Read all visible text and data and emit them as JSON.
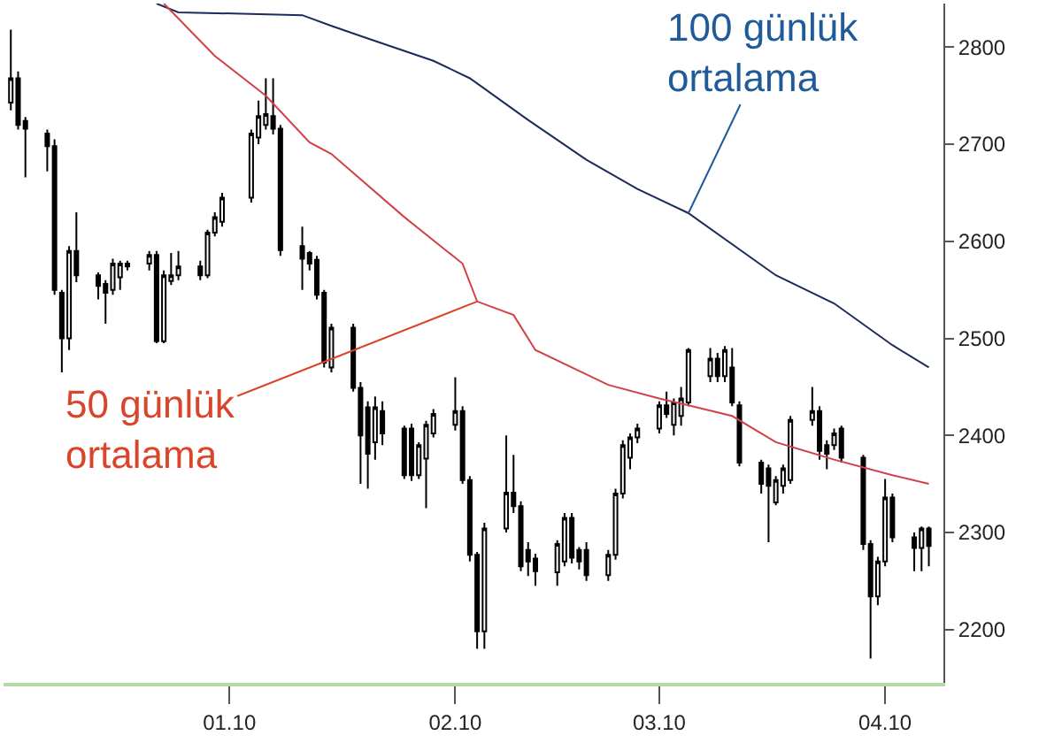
{
  "chart_data": {
    "type": "candlestick",
    "x": [
      "2009-12-02",
      "2009-12-03",
      "2009-12-04",
      "2009-12-07",
      "2009-12-08",
      "2009-12-09",
      "2009-12-10",
      "2009-12-11",
      "2009-12-14",
      "2009-12-15",
      "2009-12-16",
      "2009-12-17",
      "2009-12-18",
      "2009-12-21",
      "2009-12-22",
      "2009-12-23",
      "2009-12-24",
      "2009-12-25",
      "2009-12-28",
      "2009-12-29",
      "2009-12-30",
      "2009-12-31",
      "2010-01-04",
      "2010-01-05",
      "2010-01-06",
      "2010-01-07",
      "2010-01-08",
      "2010-01-11",
      "2010-01-12",
      "2010-01-13",
      "2010-01-14",
      "2010-01-15",
      "2010-01-18",
      "2010-01-19",
      "2010-01-20",
      "2010-01-21",
      "2010-01-22",
      "2010-01-25",
      "2010-01-26",
      "2010-01-27",
      "2010-01-28",
      "2010-01-29",
      "2010-02-01",
      "2010-02-02",
      "2010-02-03",
      "2010-02-04",
      "2010-02-05",
      "2010-02-08",
      "2010-02-09",
      "2010-02-10",
      "2010-02-11",
      "2010-02-12",
      "2010-02-15",
      "2010-02-16",
      "2010-02-17",
      "2010-02-18",
      "2010-02-19",
      "2010-02-22",
      "2010-02-23",
      "2010-02-24",
      "2010-02-25",
      "2010-02-26",
      "2010-03-01",
      "2010-03-02",
      "2010-03-03",
      "2010-03-04",
      "2010-03-05",
      "2010-03-08",
      "2010-03-09",
      "2010-03-10",
      "2010-03-11",
      "2010-03-12",
      "2010-03-15",
      "2010-03-16",
      "2010-03-17",
      "2010-03-18",
      "2010-03-19",
      "2010-03-22",
      "2010-03-23",
      "2010-03-24",
      "2010-03-25",
      "2010-03-26",
      "2010-03-29",
      "2010-03-30",
      "2010-03-31",
      "2010-04-01",
      "2010-04-02",
      "2010-04-05",
      "2010-04-06",
      "2010-04-07"
    ],
    "ohlc": [
      [
        2743,
        2818,
        2735,
        2768
      ],
      [
        2768,
        2775,
        2715,
        2720
      ],
      [
        2724,
        2728,
        2666,
        2716
      ],
      [
        2711,
        2715,
        2672,
        2698
      ],
      [
        2698,
        2705,
        2545,
        2550
      ],
      [
        2547,
        2550,
        2465,
        2500
      ],
      [
        2500,
        2595,
        2488,
        2590
      ],
      [
        2590,
        2630,
        2558,
        2565
      ],
      [
        2565,
        2568,
        2540,
        2554
      ],
      [
        2556,
        2560,
        2515,
        2547
      ],
      [
        2550,
        2582,
        2545,
        2577
      ],
      [
        2563,
        2580,
        2550,
        2577
      ],
      [
        2574,
        2580,
        2570,
        2577
      ],
      [
        2577,
        2590,
        2570,
        2586
      ],
      [
        2586,
        2590,
        2495,
        2497
      ],
      [
        2497,
        2570,
        2495,
        2565
      ],
      [
        2559,
        2588,
        2555,
        2565
      ],
      [
        2565,
        2590,
        2560,
        2574
      ],
      [
        2574,
        2580,
        2560,
        2565
      ],
      [
        2565,
        2612,
        2562,
        2609
      ],
      [
        2609,
        2630,
        2605,
        2625
      ],
      [
        2620,
        2650,
        2615,
        2645
      ],
      [
        2645,
        2715,
        2640,
        2711
      ],
      [
        2707,
        2745,
        2700,
        2729
      ],
      [
        2720,
        2768,
        2715,
        2731
      ],
      [
        2729,
        2768,
        2710,
        2716
      ],
      [
        2716,
        2720,
        2585,
        2591
      ],
      [
        2595,
        2615,
        2550,
        2582
      ],
      [
        2588,
        2590,
        2570,
        2577
      ],
      [
        2581,
        2585,
        2540,
        2545
      ],
      [
        2547,
        2550,
        2470,
        2475
      ],
      [
        2470,
        2515,
        2465,
        2511
      ],
      [
        2511,
        2515,
        2445,
        2449
      ],
      [
        2449,
        2455,
        2350,
        2400
      ],
      [
        2429,
        2435,
        2345,
        2381
      ],
      [
        2393,
        2440,
        2375,
        2429
      ],
      [
        2425,
        2435,
        2390,
        2402
      ],
      [
        2407,
        2410,
        2355,
        2359
      ],
      [
        2407,
        2412,
        2353,
        2359
      ],
      [
        2359,
        2393,
        2355,
        2390
      ],
      [
        2376,
        2415,
        2325,
        2411
      ],
      [
        2402,
        2427,
        2398,
        2422
      ],
      [
        2411,
        2460,
        2405,
        2425
      ],
      [
        2425,
        2430,
        2350,
        2354
      ],
      [
        2354,
        2358,
        2270,
        2277
      ],
      [
        2277,
        2280,
        2180,
        2198
      ],
      [
        2198,
        2310,
        2180,
        2304
      ],
      [
        2304,
        2400,
        2300,
        2341
      ],
      [
        2341,
        2380,
        2320,
        2327
      ],
      [
        2327,
        2332,
        2260,
        2265
      ],
      [
        2282,
        2290,
        2255,
        2270
      ],
      [
        2273,
        2278,
        2245,
        2260
      ],
      [
        2259,
        2292,
        2245,
        2288
      ],
      [
        2270,
        2320,
        2265,
        2315
      ],
      [
        2315,
        2320,
        2268,
        2274
      ],
      [
        2282,
        2285,
        2262,
        2270
      ],
      [
        2282,
        2290,
        2250,
        2256
      ],
      [
        2256,
        2282,
        2250,
        2277
      ],
      [
        2277,
        2345,
        2272,
        2340
      ],
      [
        2340,
        2395,
        2335,
        2390
      ],
      [
        2377,
        2402,
        2365,
        2398
      ],
      [
        2398,
        2412,
        2392,
        2407
      ],
      [
        2407,
        2435,
        2402,
        2431
      ],
      [
        2431,
        2445,
        2418,
        2422
      ],
      [
        2411,
        2438,
        2400,
        2434
      ],
      [
        2420,
        2450,
        2410,
        2438
      ],
      [
        2434,
        2490,
        2430,
        2488
      ],
      [
        2461,
        2490,
        2455,
        2479
      ],
      [
        2479,
        2485,
        2455,
        2461
      ],
      [
        2461,
        2492,
        2455,
        2488
      ],
      [
        2470,
        2490,
        2430,
        2434
      ],
      [
        2431,
        2435,
        2368,
        2372
      ],
      [
        2372,
        2375,
        2340,
        2350
      ],
      [
        2366,
        2370,
        2290,
        2348
      ],
      [
        2331,
        2358,
        2328,
        2354
      ],
      [
        2348,
        2370,
        2340,
        2366
      ],
      [
        2354,
        2420,
        2350,
        2416
      ],
      [
        2416,
        2450,
        2410,
        2425
      ],
      [
        2425,
        2430,
        2375,
        2384
      ],
      [
        2390,
        2395,
        2365,
        2381
      ],
      [
        2390,
        2407,
        2385,
        2402
      ],
      [
        2407,
        2410,
        2372,
        2377
      ],
      [
        2377,
        2380,
        2282,
        2288
      ],
      [
        2288,
        2292,
        2170,
        2234
      ],
      [
        2234,
        2275,
        2225,
        2270
      ],
      [
        2270,
        2355,
        2265,
        2336
      ],
      [
        2336,
        2340,
        2290,
        2295
      ],
      [
        2295,
        2300,
        2260,
        2284
      ],
      [
        2284,
        2306,
        2260,
        2304
      ],
      [
        2304,
        2306,
        2265,
        2286
      ]
    ],
    "series": [
      {
        "type": "line",
        "color": "#1c2a5e",
        "x": [
          "2009-12-22",
          "2009-12-25",
          "2010-01-11",
          "2010-01-15",
          "2010-01-20",
          "2010-01-29",
          "2010-02-03",
          "2010-02-11",
          "2010-02-19",
          "2010-02-26",
          "2010-03-05",
          "2010-03-17",
          "2010-03-25",
          "2010-04-02",
          "2010-04-07"
        ],
        "values": [
          2845,
          2836,
          2833,
          2822,
          2809,
          2786,
          2768,
          2725,
          2684,
          2654,
          2629,
          2565,
          2536,
          2493,
          2470
        ]
      },
      {
        "type": "line",
        "color": "#d2404a",
        "x": [
          "2009-12-23",
          "2009-12-30",
          "2010-01-06",
          "2010-01-12",
          "2010-01-15",
          "2010-01-25",
          "2010-02-02",
          "2010-02-04",
          "2010-02-09",
          "2010-02-12",
          "2010-02-22",
          "2010-03-01",
          "2010-03-05",
          "2010-03-11",
          "2010-03-17",
          "2010-03-25",
          "2010-04-02",
          "2010-04-07"
        ],
        "values": [
          2845,
          2791,
          2750,
          2702,
          2690,
          2625,
          2577,
          2538,
          2524,
          2488,
          2452,
          2438,
          2431,
          2420,
          2393,
          2375,
          2359,
          2350
        ]
      }
    ],
    "xlim": [
      "2009-12-01",
      "2010-04-09"
    ],
    "xticks": [
      {
        "value": "2010-01-01",
        "label": "01.10"
      },
      {
        "value": "2010-02-01",
        "label": "02.10"
      },
      {
        "value": "2010-03-01",
        "label": "03.10"
      },
      {
        "value": "2010-04-01",
        "label": "04.10"
      }
    ],
    "ylim": [
      2145,
      2845
    ],
    "yticks": [
      2200,
      2300,
      2400,
      2500,
      2600,
      2700,
      2800
    ],
    "annotations": [
      {
        "text": "50 günlük ortalama",
        "x": "2010-02-04",
        "y": 2538
      },
      {
        "text": "100 günlük ortalama",
        "x": "2010-03-05",
        "y": 2629
      }
    ]
  }
}
